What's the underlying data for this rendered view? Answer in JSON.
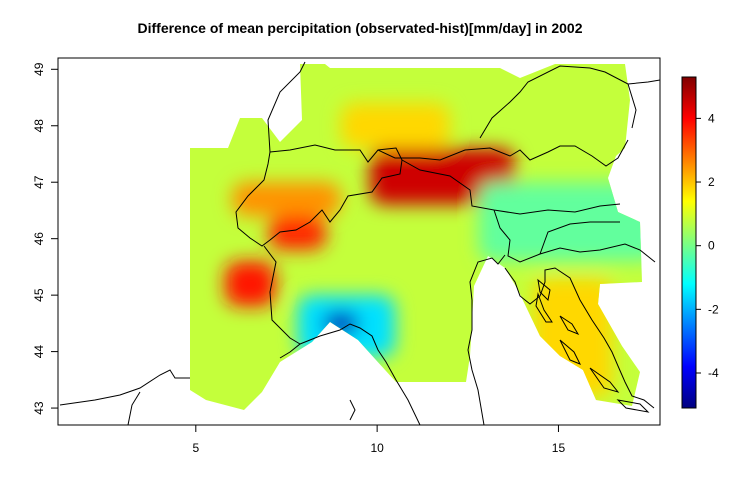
{
  "title": "Difference of mean percipitation (observated-hist)[mm/day] in 2002",
  "x_axis": {
    "ticks": [
      5,
      10,
      15
    ]
  },
  "y_axis": {
    "ticks": [
      43,
      44,
      45,
      46,
      47,
      48,
      49
    ]
  },
  "colorbar": {
    "ticks": [
      4,
      2,
      0,
      -2,
      -4
    ],
    "range": [
      -5.1,
      5.3
    ]
  },
  "map_extent": {
    "lon": [
      1.2,
      17.8
    ],
    "lat": [
      42.7,
      49.2
    ]
  },
  "colors": {
    "scale": [
      "#00007F",
      "#0000FF",
      "#007FFF",
      "#00FFFF",
      "#7FFF7F",
      "#FFFF00",
      "#FF7F00",
      "#FF0000",
      "#7F0000"
    ]
  },
  "chart_data": {
    "type": "heatmap",
    "title": "Difference of mean percipitation (observated-hist)[mm/day] in 2002",
    "units": "mm/day",
    "xlim": [
      1.2,
      17.8
    ],
    "ylim": [
      42.7,
      49.2
    ],
    "color_range": [
      -5.1,
      5.3
    ],
    "regions": [
      {
        "lon": [
          9.8,
          13.8
        ],
        "lat": [
          46.6,
          47.6
        ],
        "value": 4.5
      },
      {
        "lon": [
          5.8,
          7.2
        ],
        "lat": [
          44.8,
          45.6
        ],
        "value": 3.8
      },
      {
        "lon": [
          7.0,
          8.6
        ],
        "lat": [
          45.8,
          46.4
        ],
        "value": 3.6
      },
      {
        "lon": [
          6.0,
          9.0
        ],
        "lat": [
          46.4,
          47.0
        ],
        "value": 2.5
      },
      {
        "lon": [
          9.0,
          12.0
        ],
        "lat": [
          47.6,
          48.4
        ],
        "value": 1.8
      },
      {
        "lon": [
          7.8,
          10.5
        ],
        "lat": [
          43.9,
          45.0
        ],
        "value": -1.5
      },
      {
        "lon": [
          8.5,
          9.5
        ],
        "lat": [
          44.3,
          44.7
        ],
        "value": -4.5
      },
      {
        "lon": [
          14.3,
          16.5
        ],
        "lat": [
          43.2,
          45.3
        ],
        "value": 1.8
      },
      {
        "lon": [
          12.8,
          17.8
        ],
        "lat": [
          45.6,
          47.0
        ],
        "value": -0.2
      }
    ]
  }
}
